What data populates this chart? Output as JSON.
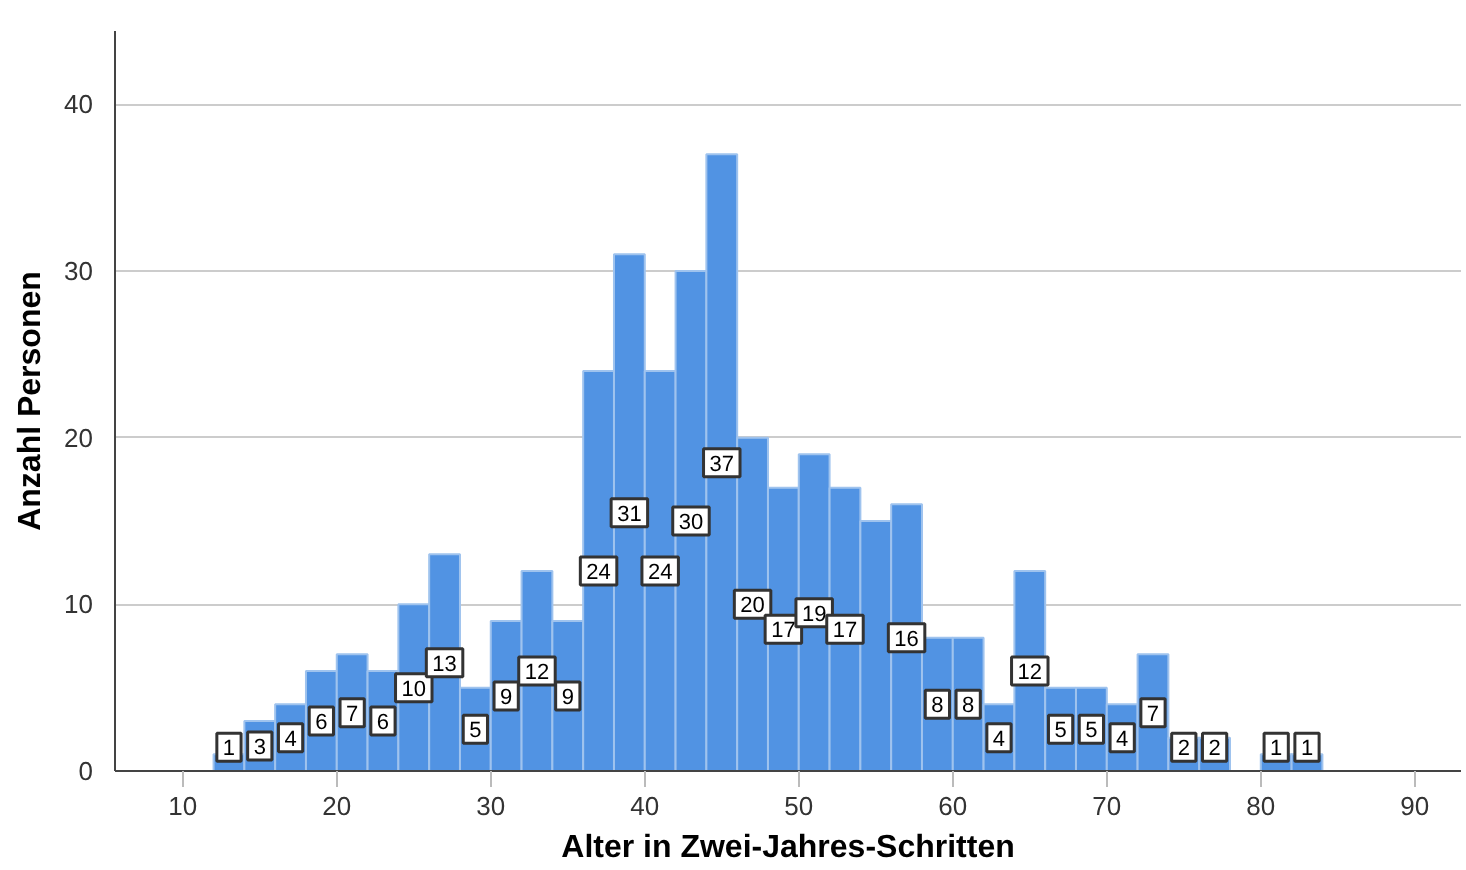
{
  "chart_data": {
    "type": "histogram",
    "xlabel": "Alter in Zwei-Jahres-Schritten",
    "ylabel": "Anzahl Personen",
    "color": "#5193e3",
    "bins": [
      12,
      14,
      16,
      18,
      20,
      22,
      24,
      26,
      28,
      30,
      32,
      34,
      36,
      38,
      40,
      42,
      44,
      46,
      48,
      50,
      52,
      54,
      56,
      58,
      60,
      62,
      64,
      66,
      68,
      70,
      72,
      74,
      76,
      78,
      80,
      82,
      84
    ],
    "values": [
      1,
      3,
      4,
      6,
      7,
      6,
      10,
      13,
      5,
      9,
      12,
      9,
      24,
      31,
      24,
      30,
      37,
      20,
      17,
      19,
      17,
      15,
      16,
      8,
      8,
      4,
      12,
      5,
      5,
      4,
      7,
      2,
      2,
      0,
      1,
      1
    ],
    "value_labels": [
      "1",
      "3",
      "4",
      "6",
      "7",
      "6",
      "10",
      "13",
      "5",
      "9",
      "12",
      "9",
      "24",
      "31",
      "24",
      "30",
      "37",
      "20",
      "17",
      "19",
      "17",
      null,
      "16",
      "8",
      "8",
      "4",
      "12",
      "5",
      "5",
      "4",
      "7",
      "2",
      "2",
      null,
      "1",
      "1"
    ],
    "xlim": [
      5.6,
      93
    ],
    "ylim": [
      0,
      44.4
    ],
    "xticks": [
      10,
      20,
      30,
      40,
      50,
      60,
      70,
      80,
      90
    ],
    "yticks": [
      0,
      10,
      20,
      30,
      40
    ],
    "grid": "y"
  }
}
